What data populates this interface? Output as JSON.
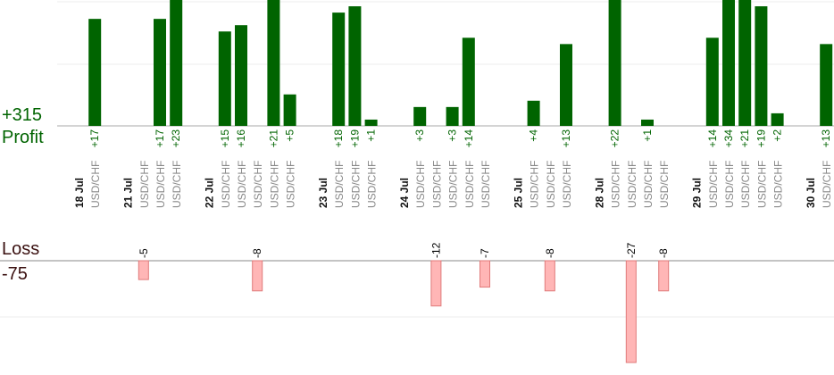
{
  "summary": {
    "profit_total": "+315",
    "profit_label": "Profit",
    "loss_label": "Loss",
    "loss_total": "-75"
  },
  "colors": {
    "profit_fill": "#006400",
    "profit_text": "#006400",
    "loss_fill": "#ffb6b6",
    "loss_stroke": "#e07a7a",
    "loss_text": "#000000",
    "instrument_text": "#888888",
    "date_text": "#111111"
  },
  "chart_data": {
    "type": "bar",
    "profit_ylim": [
      0,
      20
    ],
    "loss_ylim": [
      -27,
      0
    ],
    "slots": [
      {
        "kind": "date",
        "label": "18 Jul"
      },
      {
        "kind": "trade",
        "label": "USD/CHF",
        "value": 17
      },
      {
        "kind": "gap"
      },
      {
        "kind": "date",
        "label": "21 Jul"
      },
      {
        "kind": "trade",
        "label": "USD/CHF",
        "value": -5
      },
      {
        "kind": "trade",
        "label": "USD/CHF",
        "value": 17
      },
      {
        "kind": "trade",
        "label": "USD/CHF",
        "value": 23
      },
      {
        "kind": "gap"
      },
      {
        "kind": "date",
        "label": "22 Jul"
      },
      {
        "kind": "trade",
        "label": "USD/CHF",
        "value": 15
      },
      {
        "kind": "trade",
        "label": "USD/CHF",
        "value": 16
      },
      {
        "kind": "trade",
        "label": "USD/CHF",
        "value": -8
      },
      {
        "kind": "trade",
        "label": "USD/CHF",
        "value": 21
      },
      {
        "kind": "trade",
        "label": "USD/CHF",
        "value": 5
      },
      {
        "kind": "gap"
      },
      {
        "kind": "date",
        "label": "23 Jul"
      },
      {
        "kind": "trade",
        "label": "USD/CHF",
        "value": 18
      },
      {
        "kind": "trade",
        "label": "USD/CHF",
        "value": 19
      },
      {
        "kind": "trade",
        "label": "USD/CHF",
        "value": 1
      },
      {
        "kind": "gap"
      },
      {
        "kind": "date",
        "label": "24 Jul"
      },
      {
        "kind": "trade",
        "label": "USD/CHF",
        "value": 3
      },
      {
        "kind": "trade",
        "label": "USD/CHF",
        "value": -12
      },
      {
        "kind": "trade",
        "label": "USD/CHF",
        "value": 3
      },
      {
        "kind": "trade",
        "label": "USD/CHF",
        "value": 14
      },
      {
        "kind": "trade",
        "label": "USD/CHF",
        "value": -7
      },
      {
        "kind": "gap"
      },
      {
        "kind": "date",
        "label": "25 Jul"
      },
      {
        "kind": "trade",
        "label": "USD/CHF",
        "value": 4
      },
      {
        "kind": "trade",
        "label": "USD/CHF",
        "value": -8
      },
      {
        "kind": "trade",
        "label": "USD/CHF",
        "value": 13
      },
      {
        "kind": "gap"
      },
      {
        "kind": "date",
        "label": "28 Jul"
      },
      {
        "kind": "trade",
        "label": "USD/CHF",
        "value": 22
      },
      {
        "kind": "trade",
        "label": "USD/CHF",
        "value": -27
      },
      {
        "kind": "trade",
        "label": "USD/CHF",
        "value": 1
      },
      {
        "kind": "trade",
        "label": "USD/CHF",
        "value": -8
      },
      {
        "kind": "gap"
      },
      {
        "kind": "date",
        "label": "29 Jul"
      },
      {
        "kind": "trade",
        "label": "USD/CHF",
        "value": 14
      },
      {
        "kind": "trade",
        "label": "USD/CHF",
        "value": 34
      },
      {
        "kind": "trade",
        "label": "USD/CHF",
        "value": 21
      },
      {
        "kind": "trade",
        "label": "USD/CHF",
        "value": 19
      },
      {
        "kind": "trade",
        "label": "USD/CHF",
        "value": 2
      },
      {
        "kind": "gap"
      },
      {
        "kind": "date",
        "label": "30 Jul"
      },
      {
        "kind": "trade",
        "label": "USD/CHF",
        "value": 13
      }
    ]
  }
}
